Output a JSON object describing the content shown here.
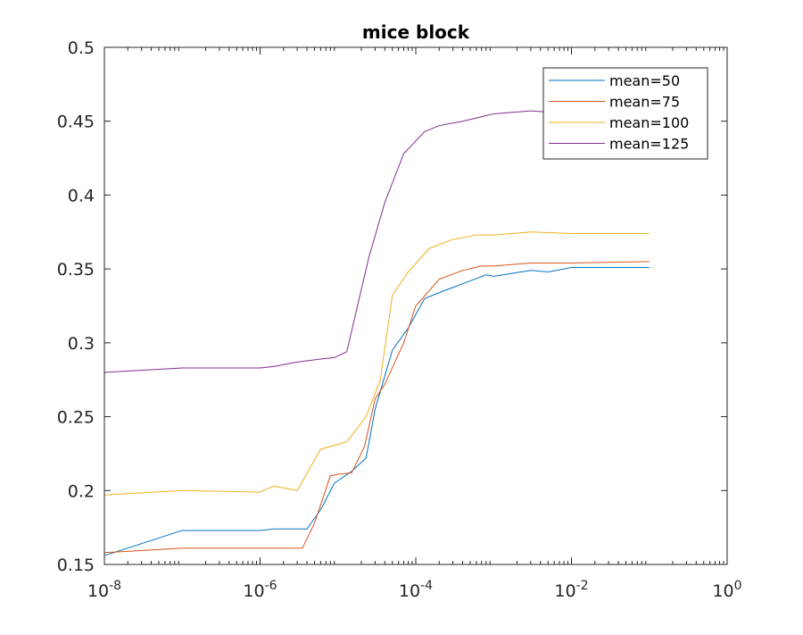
{
  "chart_data": {
    "type": "line",
    "title": "mice block",
    "xscale": "log",
    "xlim": [
      1e-08,
      1
    ],
    "ylim": [
      0.15,
      0.5
    ],
    "xlabel": "",
    "ylabel": "",
    "x_ticks": [
      {
        "base": "10",
        "exp": "-8",
        "value": 1e-08
      },
      {
        "base": "10",
        "exp": "-6",
        "value": 1e-06
      },
      {
        "base": "10",
        "exp": "-4",
        "value": 0.0001
      },
      {
        "base": "10",
        "exp": "-2",
        "value": 0.01
      },
      {
        "base": "10",
        "exp": "0",
        "value": 1
      }
    ],
    "y_ticks": [
      "0.15",
      "0.2",
      "0.25",
      "0.3",
      "0.35",
      "0.4",
      "0.45",
      "0.5"
    ],
    "legend_position": "top-right",
    "series": [
      {
        "name": "mean=50",
        "color": "#0072BD",
        "x": [
          1e-08,
          1e-07,
          1e-06,
          1.5e-06,
          4e-06,
          6e-06,
          9e-06,
          1.5e-05,
          2.3e-05,
          3e-05,
          5e-05,
          8e-05,
          0.00013,
          0.0002,
          0.0004,
          0.0008,
          0.001,
          0.003,
          0.005,
          0.01,
          0.1
        ],
        "values": [
          0.156,
          0.173,
          0.173,
          0.174,
          0.174,
          0.187,
          0.205,
          0.213,
          0.222,
          0.255,
          0.295,
          0.31,
          0.33,
          0.334,
          0.34,
          0.346,
          0.345,
          0.349,
          0.348,
          0.351,
          0.351
        ]
      },
      {
        "name": "mean=75",
        "color": "#D95319",
        "x": [
          1e-08,
          1e-07,
          1e-06,
          3.5e-06,
          5e-06,
          8e-06,
          1e-05,
          1.5e-05,
          2.2e-05,
          3e-05,
          4e-05,
          7e-05,
          0.0001,
          0.0002,
          0.0004,
          0.0007,
          0.001,
          0.003,
          0.01,
          0.1
        ],
        "values": [
          0.158,
          0.161,
          0.161,
          0.161,
          0.178,
          0.21,
          0.211,
          0.212,
          0.23,
          0.262,
          0.272,
          0.3,
          0.325,
          0.343,
          0.349,
          0.352,
          0.352,
          0.354,
          0.354,
          0.355
        ]
      },
      {
        "name": "mean=100",
        "color": "#EDB120",
        "x": [
          1e-08,
          1e-07,
          1e-06,
          1.5e-06,
          3e-06,
          6e-06,
          1.3e-05,
          2.3e-05,
          3.5e-05,
          5e-05,
          8e-05,
          0.00015,
          0.0003,
          0.0006,
          0.001,
          0.003,
          0.01,
          0.1
        ],
        "values": [
          0.197,
          0.2,
          0.199,
          0.203,
          0.2,
          0.228,
          0.233,
          0.25,
          0.275,
          0.332,
          0.348,
          0.364,
          0.37,
          0.373,
          0.373,
          0.375,
          0.374,
          0.374
        ]
      },
      {
        "name": "mean=125",
        "color": "#7E2F8E",
        "x": [
          1e-08,
          1e-07,
          1e-06,
          1.5e-06,
          3e-06,
          6e-06,
          9e-06,
          1.3e-05,
          2.5e-05,
          4e-05,
          7e-05,
          0.00013,
          0.0002,
          0.0004,
          0.0007,
          0.001,
          0.003,
          0.01,
          0.1
        ],
        "values": [
          0.28,
          0.283,
          0.283,
          0.284,
          0.287,
          0.289,
          0.29,
          0.294,
          0.358,
          0.395,
          0.428,
          0.443,
          0.447,
          0.45,
          0.453,
          0.455,
          0.457,
          0.455,
          0.456
        ]
      }
    ]
  }
}
